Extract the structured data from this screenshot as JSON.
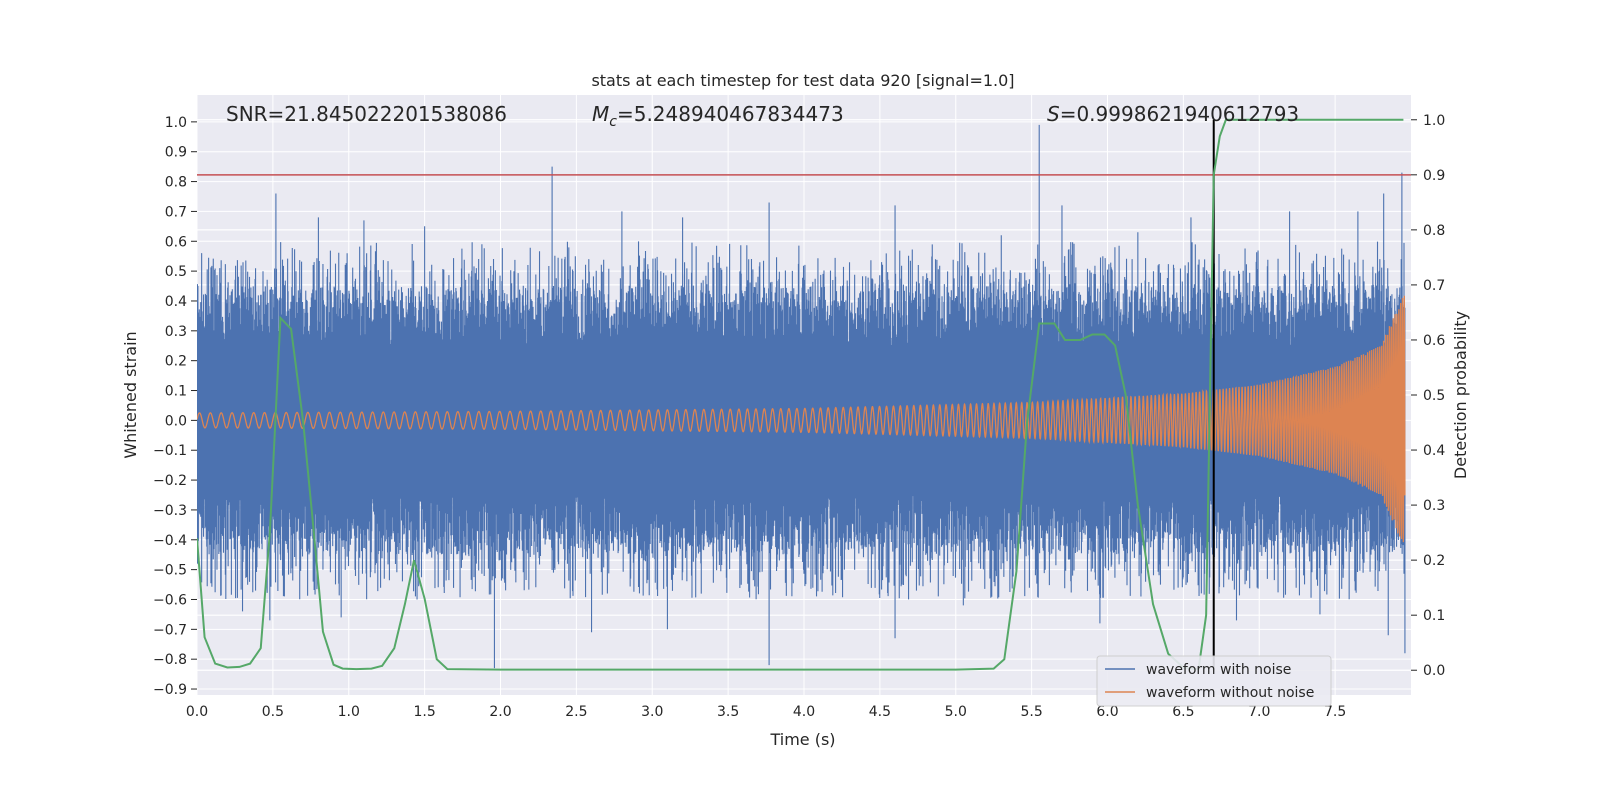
{
  "chart_data": {
    "type": "line",
    "title": "stats at each timestep for test data 920 [signal=1.0]",
    "xlabel": "Time (s)",
    "ylabel": "Whitened strain",
    "y2label": "Detection probability",
    "xlim": [
      0.0,
      8.0
    ],
    "ylim": [
      -0.92,
      1.09
    ],
    "y2lim": [
      -0.045,
      1.045
    ],
    "xticks": [
      "0.0",
      "0.5",
      "1.0",
      "1.5",
      "2.0",
      "2.5",
      "3.0",
      "3.5",
      "4.0",
      "4.5",
      "5.0",
      "5.5",
      "6.0",
      "6.5",
      "7.0",
      "7.5"
    ],
    "yticks": [
      "1.0",
      "0.9",
      "0.8",
      "0.7",
      "0.6",
      "0.5",
      "0.4",
      "0.3",
      "0.2",
      "0.1",
      "0.0",
      "−0.1",
      "−0.2",
      "−0.3",
      "−0.4",
      "−0.5",
      "−0.6",
      "−0.7",
      "−0.8",
      "−0.9"
    ],
    "y2ticks": [
      "1.0",
      "0.9",
      "0.8",
      "0.7",
      "0.6",
      "0.5",
      "0.4",
      "0.3",
      "0.2",
      "0.1",
      "0.0"
    ],
    "grid": true,
    "legend_position": "lower-right",
    "annotations": {
      "snr": "SNR=21.845022201538086",
      "mc_symbol": "M",
      "mc_sub": "c",
      "mc_value": "=5.248940467834473",
      "s_symbol": "S",
      "s_value": "=0.9998621940612793"
    },
    "threshold_line": {
      "y2": 0.9,
      "color": "#c44e52"
    },
    "detection_time": 6.7,
    "series": [
      {
        "name": "waveform with noise",
        "color": "#4c72b0",
        "envelope_upper_approx": 0.55,
        "envelope_lower_approx": -0.6,
        "spikes": [
          [
            0.15,
            0.51
          ],
          [
            0.52,
            0.76
          ],
          [
            0.8,
            0.68
          ],
          [
            1.1,
            0.67
          ],
          [
            1.5,
            0.65
          ],
          [
            2.34,
            0.85
          ],
          [
            2.8,
            0.7
          ],
          [
            3.2,
            0.68
          ],
          [
            3.77,
            0.73
          ],
          [
            4.6,
            0.72
          ],
          [
            5.3,
            0.62
          ],
          [
            5.55,
            0.99
          ],
          [
            5.7,
            0.72
          ],
          [
            6.2,
            0.63
          ],
          [
            6.55,
            0.68
          ],
          [
            7.2,
            0.7
          ],
          [
            7.65,
            0.7
          ],
          [
            7.82,
            0.76
          ],
          [
            7.94,
            0.83
          ],
          [
            0.3,
            -0.64
          ],
          [
            0.48,
            -0.67
          ],
          [
            0.95,
            -0.66
          ],
          [
            1.45,
            -0.6
          ],
          [
            1.96,
            -0.83
          ],
          [
            2.6,
            -0.71
          ],
          [
            3.1,
            -0.7
          ],
          [
            3.77,
            -0.82
          ],
          [
            4.6,
            -0.73
          ],
          [
            5.05,
            -0.62
          ],
          [
            5.95,
            -0.68
          ],
          [
            6.85,
            -0.67
          ],
          [
            7.4,
            -0.65
          ],
          [
            7.85,
            -0.72
          ],
          [
            7.96,
            -0.78
          ]
        ]
      },
      {
        "name": "waveform without noise",
        "color": "#dd8452",
        "amplitude_points": [
          [
            0.0,
            0.025
          ],
          [
            2.0,
            0.03
          ],
          [
            4.0,
            0.04
          ],
          [
            5.5,
            0.06
          ],
          [
            6.5,
            0.09
          ],
          [
            7.0,
            0.12
          ],
          [
            7.5,
            0.18
          ],
          [
            7.8,
            0.25
          ],
          [
            7.95,
            0.42
          ]
        ]
      },
      {
        "name": "detection probability",
        "color": "#55a868",
        "axis": "y2",
        "points": [
          [
            0.0,
            0.24
          ],
          [
            0.05,
            0.06
          ],
          [
            0.12,
            0.012
          ],
          [
            0.2,
            0.005
          ],
          [
            0.28,
            0.006
          ],
          [
            0.35,
            0.012
          ],
          [
            0.42,
            0.04
          ],
          [
            0.48,
            0.25
          ],
          [
            0.55,
            0.64
          ],
          [
            0.62,
            0.62
          ],
          [
            0.7,
            0.45
          ],
          [
            0.77,
            0.25
          ],
          [
            0.83,
            0.07
          ],
          [
            0.9,
            0.01
          ],
          [
            0.96,
            0.003
          ],
          [
            1.05,
            0.002
          ],
          [
            1.15,
            0.003
          ],
          [
            1.22,
            0.008
          ],
          [
            1.3,
            0.04
          ],
          [
            1.37,
            0.12
          ],
          [
            1.43,
            0.2
          ],
          [
            1.5,
            0.13
          ],
          [
            1.58,
            0.02
          ],
          [
            1.65,
            0.002
          ],
          [
            2.0,
            0.001
          ],
          [
            3.0,
            0.001
          ],
          [
            4.0,
            0.001
          ],
          [
            5.0,
            0.001
          ],
          [
            5.25,
            0.003
          ],
          [
            5.32,
            0.02
          ],
          [
            5.4,
            0.18
          ],
          [
            5.47,
            0.45
          ],
          [
            5.55,
            0.63
          ],
          [
            5.65,
            0.63
          ],
          [
            5.72,
            0.6
          ],
          [
            5.82,
            0.6
          ],
          [
            5.9,
            0.61
          ],
          [
            5.98,
            0.61
          ],
          [
            6.05,
            0.59
          ],
          [
            6.12,
            0.5
          ],
          [
            6.2,
            0.3
          ],
          [
            6.3,
            0.12
          ],
          [
            6.4,
            0.03
          ],
          [
            6.5,
            0.005
          ],
          [
            6.6,
            0.002
          ],
          [
            6.65,
            0.1
          ],
          [
            6.7,
            0.9
          ],
          [
            6.74,
            0.97
          ],
          [
            6.78,
            1.0
          ],
          [
            7.0,
            1.0
          ],
          [
            7.5,
            1.0
          ],
          [
            7.95,
            1.0
          ]
        ]
      }
    ]
  }
}
